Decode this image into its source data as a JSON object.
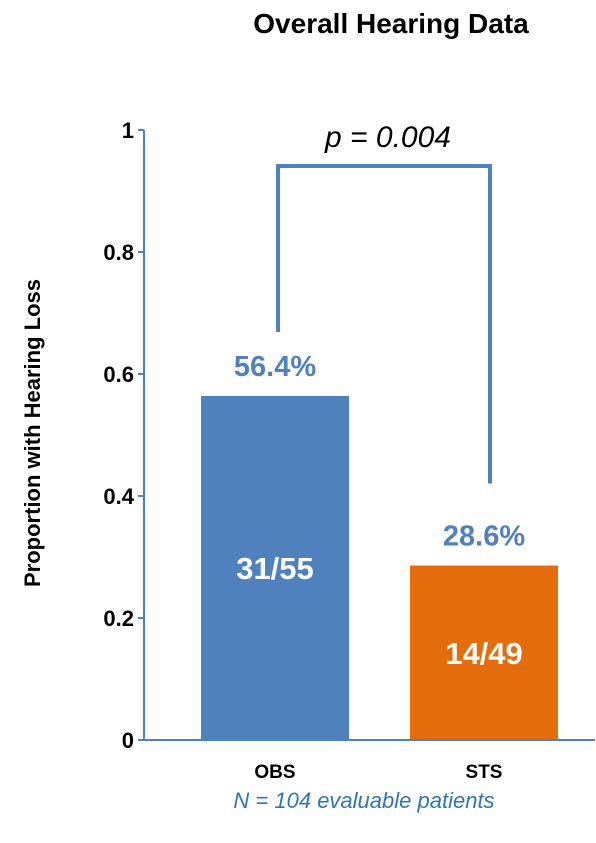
{
  "chart_data": {
    "type": "bar",
    "title": "Overall Hearing Data",
    "ylabel": "Proportion with Hearing Loss",
    "xlabel": "",
    "ylim": [
      0,
      1
    ],
    "y_ticks": [
      "0",
      "0.2",
      "0.4",
      "0.6",
      "0.8",
      "1"
    ],
    "categories": [
      "OBS",
      "STS"
    ],
    "values": [
      0.564,
      0.286
    ],
    "percent_labels": [
      "56.4%",
      "28.6%"
    ],
    "count_labels": [
      "31/55",
      "14/49"
    ],
    "bar_colors": [
      "#4f81bd",
      "#e46c0a"
    ],
    "annotation": "p = 0.004",
    "footnote": "N = 104 evaluable patients",
    "grid": false,
    "legend": "none"
  },
  "colors": {
    "accent": "#4f81bd",
    "axis": "#4f81bd",
    "footnote": "#2e75b6"
  }
}
